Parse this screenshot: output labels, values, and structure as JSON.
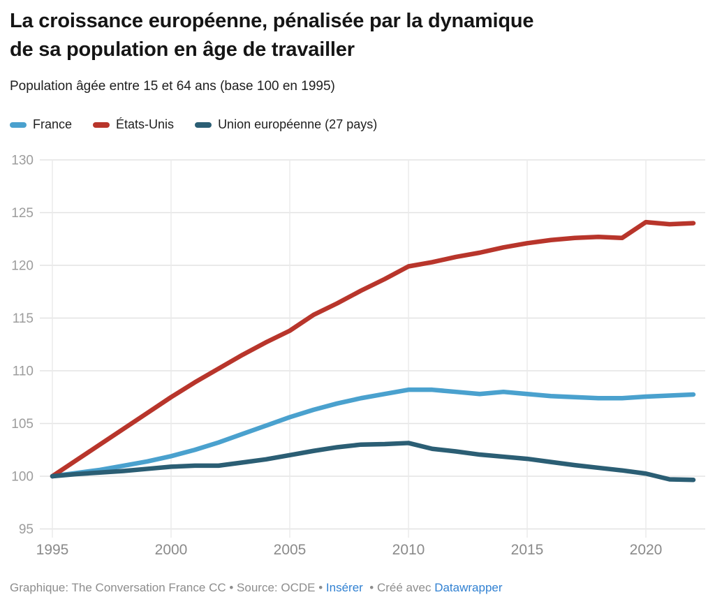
{
  "header": {
    "title_line1": "La croissance européenne, pénalisée par la dynamique",
    "title_line2": "de sa population en âge de travailler",
    "subtitle": "Population âgée entre 15 et 64 ans (base 100 en 1995)"
  },
  "chart_data": {
    "type": "line",
    "title": "La croissance européenne, pénalisée par la dynamique de sa population en âge de travailler",
    "subtitle": "Population âgée entre 15 et 64 ans (base 100 en 1995)",
    "x": [
      1995,
      1996,
      1997,
      1998,
      1999,
      2000,
      2001,
      2002,
      2003,
      2004,
      2005,
      2006,
      2007,
      2008,
      2009,
      2010,
      2011,
      2012,
      2013,
      2014,
      2015,
      2016,
      2017,
      2018,
      2019,
      2020,
      2021,
      2022
    ],
    "series": [
      {
        "name": "France",
        "color": "#4aa1ce",
        "values": [
          100,
          100.3,
          100.6,
          101,
          101.4,
          101.9,
          102.5,
          103.2,
          104,
          104.8,
          105.6,
          106.3,
          106.9,
          107.4,
          107.8,
          108.2,
          108.2,
          108,
          107.8,
          108,
          107.8,
          107.6,
          107.5,
          107.4,
          107.4,
          107.55,
          107.65,
          107.75
        ]
      },
      {
        "name": "États-Unis",
        "color": "#b8352b",
        "values": [
          100,
          101.5,
          103,
          104.5,
          106,
          107.5,
          108.9,
          110.2,
          111.5,
          112.7,
          113.8,
          115.3,
          116.4,
          117.6,
          118.7,
          119.9,
          120.3,
          120.8,
          121.2,
          121.7,
          122.1,
          122.4,
          122.6,
          122.7,
          122.6,
          124.1,
          123.9,
          124
        ]
      },
      {
        "name": "Union européenne (27 pays)",
        "color": "#2b5e74",
        "values": [
          100,
          100.2,
          100.35,
          100.5,
          100.7,
          100.9,
          101,
          101,
          101.3,
          101.6,
          102,
          102.4,
          102.75,
          103,
          103.05,
          103.15,
          102.6,
          102.35,
          102.05,
          101.85,
          101.65,
          101.35,
          101.05,
          100.8,
          100.55,
          100.25,
          99.7,
          99.65
        ]
      }
    ],
    "ylim": [
      95,
      130
    ],
    "yticks": [
      95,
      100,
      105,
      110,
      115,
      120,
      125,
      130
    ],
    "xticks": [
      1995,
      2000,
      2005,
      2010,
      2015,
      2020
    ],
    "grid": true,
    "legend_position": "top",
    "grid_color_h": "#e3e3e3",
    "grid_color_v": "#eaeaea",
    "ytick_color": "#9c9c9c",
    "xtick_color": "#8a8a8a"
  },
  "footer": {
    "byline": "Graphique: The Conversation France CC",
    "bullet": "•",
    "source": "Source: OCDE",
    "embed_link": "Insérer",
    "created_prefix": "Créé avec",
    "brand_link": "Datawrapper",
    "link_color": "#3181d2"
  }
}
